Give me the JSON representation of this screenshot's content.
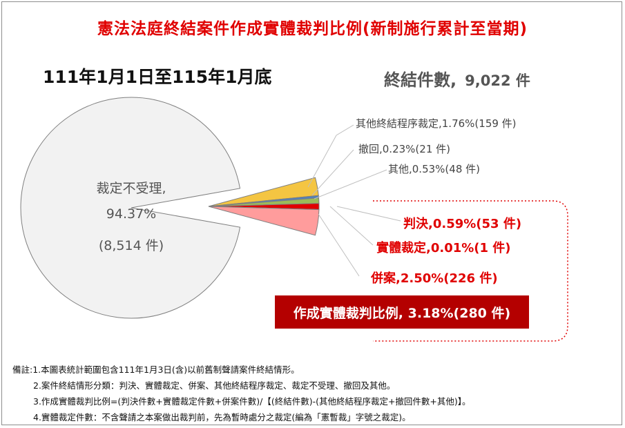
{
  "title": "憲法法庭終結案件作成實體裁判比例(新制施行累計至當期)",
  "period": "111年1月1日至115年1月底",
  "total_label": "終結件數,",
  "total_value": "9,022 件",
  "slices": {
    "dismissal": {
      "line1": "裁定不受理,",
      "line2": "94.37%",
      "line3": "(8,514 件)"
    },
    "other_procedure": "其他終結程序裁定,1.76%(159 件)",
    "withdraw": "撤回,0.23%(21 件)",
    "other": "其他,0.53%(48 件)",
    "judgment": "判決,0.59%(53 件)",
    "substantive_ruling": "實體裁定,0.01%(1 件)",
    "merged": "併案,2.50%(226 件)"
  },
  "ratio_box": "作成實體裁判比例, 3.18%(280 件)",
  "notes": [
    "備註:1.本圖表統計範圍包含111年1月3日(含)以前舊制聲請案件終結情形。",
    "2.案件終結情形分類：判決、實體裁定、併案、其他終結程序裁定、裁定不受理、撤回及其他。",
    "3.作成實體裁判比例=(判決件數+實體裁定件數+併案件數)/【(終結件數)-(其他終結程序裁定+撤回件數+其他)】。",
    "4.實體裁定件數：不含聲請之本案做出裁判前，先為暫時處分之裁定(編為「憲暫裁」字號之裁定)。"
  ],
  "chart_data": {
    "type": "pie",
    "title": "憲法法庭終結案件作成實體裁判比例(新制施行累計至當期)",
    "categories": [
      "裁定不受理",
      "其他終結程序裁定",
      "撤回",
      "其他",
      "判決",
      "實體裁定",
      "併案"
    ],
    "values": [
      8514,
      159,
      21,
      48,
      53,
      1,
      226
    ],
    "percentages": [
      94.37,
      1.76,
      0.23,
      0.53,
      0.59,
      0.01,
      2.5
    ],
    "colors": [
      "#f2f2f2",
      "#f4c542",
      "#4f81bd",
      "#9bbb59",
      "#e00000",
      "#c00000",
      "#ff9c9c"
    ],
    "exploded": [
      "其他終結程序裁定",
      "撤回",
      "其他",
      "判決",
      "實體裁定",
      "併案"
    ],
    "total": 9022
  }
}
